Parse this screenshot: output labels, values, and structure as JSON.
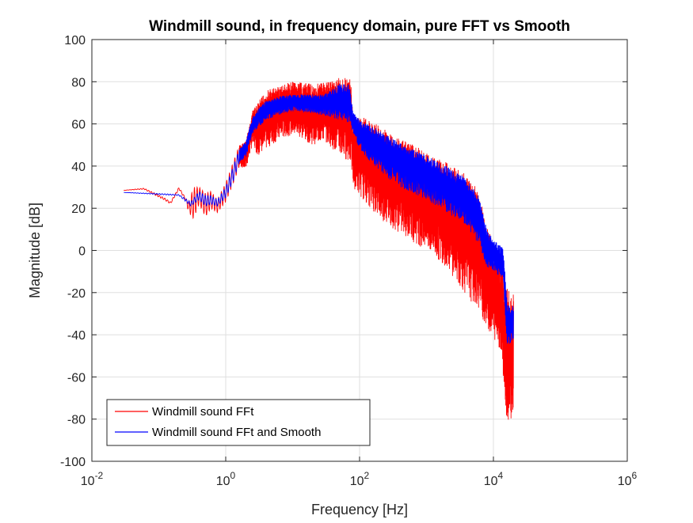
{
  "chart_data": {
    "type": "line",
    "title": "Windmill sound, in frequency domain, pure FFT vs Smooth",
    "xlabel": "Frequency [Hz]",
    "ylabel": "Magnitude [dB]",
    "xscale": "log",
    "xlim": [
      0.01,
      1000000
    ],
    "ylim": [
      -100,
      100
    ],
    "grid": true,
    "x_ticks": [
      {
        "value": 0.01,
        "base": "10",
        "exp": "-2"
      },
      {
        "value": 1,
        "base": "10",
        "exp": "0"
      },
      {
        "value": 100,
        "base": "10",
        "exp": "2"
      },
      {
        "value": 10000,
        "base": "10",
        "exp": "4"
      },
      {
        "value": 1000000,
        "base": "10",
        "exp": "6"
      }
    ],
    "y_ticks": [
      {
        "value": 100,
        "label": "100"
      },
      {
        "value": 80,
        "label": "80"
      },
      {
        "value": 60,
        "label": "60"
      },
      {
        "value": 40,
        "label": "40"
      },
      {
        "value": 20,
        "label": "20"
      },
      {
        "value": 0,
        "label": "0"
      },
      {
        "value": -20,
        "label": "-20"
      },
      {
        "value": -40,
        "label": "-40"
      },
      {
        "value": -60,
        "label": "-60"
      },
      {
        "value": -80,
        "label": "-80"
      },
      {
        "value": -100,
        "label": "-100"
      }
    ],
    "legend_position": "bottom-left",
    "series": [
      {
        "name": "Windmill sound FFt",
        "color": "#ff0000",
        "envelope": [
          {
            "x": 0.03,
            "low": 28.5,
            "high": 28.5
          },
          {
            "x": 0.06,
            "low": 29,
            "high": 29.5
          },
          {
            "x": 0.09,
            "low": 26,
            "high": 27
          },
          {
            "x": 0.12,
            "low": 24,
            "high": 25
          },
          {
            "x": 0.15,
            "low": 22,
            "high": 23
          },
          {
            "x": 0.2,
            "low": 29,
            "high": 30
          },
          {
            "x": 0.25,
            "low": 24,
            "high": 25
          },
          {
            "x": 0.28,
            "low": 18,
            "high": 23
          },
          {
            "x": 0.33,
            "low": 15,
            "high": 30
          },
          {
            "x": 0.4,
            "low": 22,
            "high": 30
          },
          {
            "x": 0.5,
            "low": 16,
            "high": 27
          },
          {
            "x": 0.6,
            "low": 20,
            "high": 28
          },
          {
            "x": 0.75,
            "low": 18,
            "high": 24
          },
          {
            "x": 1.0,
            "low": 23,
            "high": 32
          },
          {
            "x": 1.3,
            "low": 32,
            "high": 42
          },
          {
            "x": 1.6,
            "low": 40,
            "high": 50
          },
          {
            "x": 2.0,
            "low": 38,
            "high": 52
          },
          {
            "x": 2.5,
            "low": 50,
            "high": 66
          },
          {
            "x": 3.0,
            "low": 45,
            "high": 70
          },
          {
            "x": 4.0,
            "low": 48,
            "high": 76
          },
          {
            "x": 6.0,
            "low": 52,
            "high": 78
          },
          {
            "x": 10.0,
            "low": 55,
            "high": 80
          },
          {
            "x": 20.0,
            "low": 50,
            "high": 79
          },
          {
            "x": 30.0,
            "low": 52,
            "high": 80
          },
          {
            "x": 50.0,
            "low": 45,
            "high": 82
          },
          {
            "x": 70.0,
            "low": 42,
            "high": 82
          },
          {
            "x": 75.0,
            "low": 40,
            "high": 80
          },
          {
            "x": 80.0,
            "low": 30,
            "high": 60
          },
          {
            "x": 100.0,
            "low": 26,
            "high": 64
          },
          {
            "x": 200.0,
            "low": 15,
            "high": 59
          },
          {
            "x": 400.0,
            "low": 8,
            "high": 53
          },
          {
            "x": 1000.0,
            "low": 0,
            "high": 47
          },
          {
            "x": 2000.0,
            "low": -8,
            "high": 42
          },
          {
            "x": 4000.0,
            "low": -22,
            "high": 36
          },
          {
            "x": 6000.0,
            "low": -28,
            "high": 28
          },
          {
            "x": 8000.0,
            "low": -37,
            "high": 12
          },
          {
            "x": 10000.0,
            "low": -42,
            "high": 3
          },
          {
            "x": 12000.0,
            "low": -45,
            "high": 0
          },
          {
            "x": 14000.0,
            "low": -60,
            "high": -10
          },
          {
            "x": 16000.0,
            "low": -82,
            "high": -18
          },
          {
            "x": 18000.0,
            "low": -80,
            "high": -20
          },
          {
            "x": 20000.0,
            "low": -78,
            "high": -20
          }
        ]
      },
      {
        "name": "Windmill sound FFt and Smooth",
        "color": "#0000ff",
        "envelope": [
          {
            "x": 0.03,
            "low": 27.5,
            "high": 27.5
          },
          {
            "x": 0.1,
            "low": 26.5,
            "high": 27
          },
          {
            "x": 0.2,
            "low": 26,
            "high": 26.5
          },
          {
            "x": 0.3,
            "low": 21,
            "high": 23
          },
          {
            "x": 0.4,
            "low": 24,
            "high": 28
          },
          {
            "x": 0.5,
            "low": 21,
            "high": 26
          },
          {
            "x": 0.6,
            "low": 22,
            "high": 26
          },
          {
            "x": 0.75,
            "low": 21,
            "high": 24
          },
          {
            "x": 1.0,
            "low": 25,
            "high": 30
          },
          {
            "x": 1.3,
            "low": 33,
            "high": 40
          },
          {
            "x": 1.6,
            "low": 42,
            "high": 48
          },
          {
            "x": 2.0,
            "low": 44,
            "high": 52
          },
          {
            "x": 2.5,
            "low": 55,
            "high": 63
          },
          {
            "x": 3.0,
            "low": 58,
            "high": 67
          },
          {
            "x": 4.0,
            "low": 62,
            "high": 71
          },
          {
            "x": 6.0,
            "low": 64,
            "high": 73
          },
          {
            "x": 10.0,
            "low": 66,
            "high": 74
          },
          {
            "x": 20.0,
            "low": 65,
            "high": 74
          },
          {
            "x": 30.0,
            "low": 64,
            "high": 74
          },
          {
            "x": 50.0,
            "low": 62,
            "high": 79
          },
          {
            "x": 70.0,
            "low": 60,
            "high": 79
          },
          {
            "x": 80.0,
            "low": 56,
            "high": 66
          },
          {
            "x": 100.0,
            "low": 48,
            "high": 62
          },
          {
            "x": 200.0,
            "low": 37,
            "high": 57
          },
          {
            "x": 400.0,
            "low": 30,
            "high": 51
          },
          {
            "x": 1000.0,
            "low": 24,
            "high": 45
          },
          {
            "x": 2000.0,
            "low": 18,
            "high": 40
          },
          {
            "x": 4000.0,
            "low": 12,
            "high": 34
          },
          {
            "x": 6000.0,
            "low": 2,
            "high": 26
          },
          {
            "x": 8000.0,
            "low": -8,
            "high": 10
          },
          {
            "x": 10000.0,
            "low": -10,
            "high": 5
          },
          {
            "x": 12000.0,
            "low": -12,
            "high": 3
          },
          {
            "x": 14000.0,
            "low": -15,
            "high": 1
          },
          {
            "x": 16000.0,
            "low": -45,
            "high": -25
          },
          {
            "x": 18000.0,
            "low": -44,
            "high": -27
          },
          {
            "x": 20000.0,
            "low": -42,
            "high": -26
          }
        ]
      }
    ]
  }
}
